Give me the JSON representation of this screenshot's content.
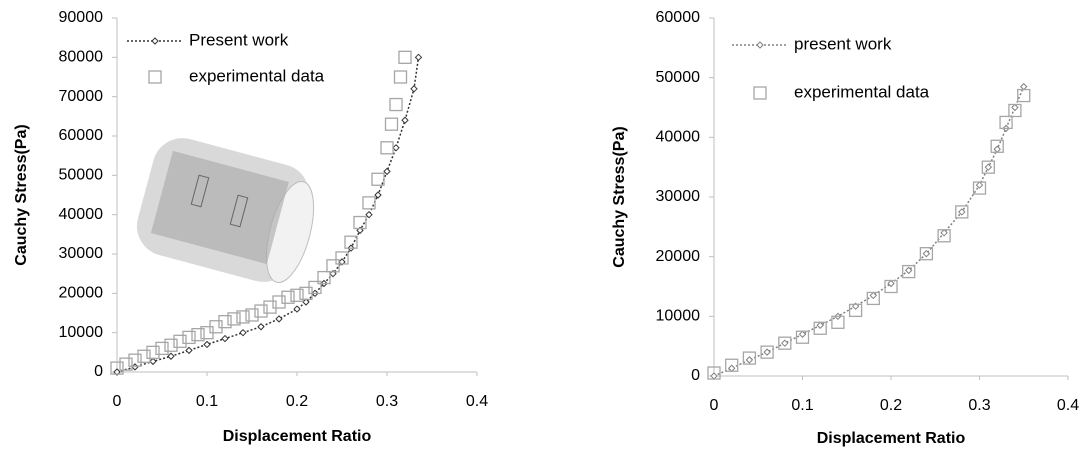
{
  "chart_data": [
    {
      "type": "scatter",
      "xlabel": "Displacement  Ratio",
      "ylabel": "Cauchy Stress(Pa)",
      "xlim": [
        0,
        0.4
      ],
      "ylim": [
        0,
        90000
      ],
      "xticks": [
        0,
        0.1,
        0.2,
        0.3,
        0.4
      ],
      "yticks": [
        0,
        10000,
        20000,
        30000,
        40000,
        50000,
        60000,
        70000,
        80000,
        90000
      ],
      "legend": "upper left",
      "series": [
        {
          "name": "Present work",
          "color": "#333333",
          "style": "line",
          "x": [
            0,
            0.02,
            0.04,
            0.06,
            0.08,
            0.1,
            0.12,
            0.14,
            0.16,
            0.18,
            0.2,
            0.21,
            0.22,
            0.23,
            0.24,
            0.25,
            0.26,
            0.27,
            0.28,
            0.29,
            0.3,
            0.31,
            0.32,
            0.33,
            0.335
          ],
          "values": [
            0,
            1300,
            2700,
            4000,
            5500,
            7000,
            8500,
            10000,
            11500,
            13500,
            16000,
            17800,
            20000,
            22500,
            25000,
            28000,
            31500,
            36000,
            40000,
            45000,
            51000,
            57000,
            64000,
            72000,
            80000
          ]
        },
        {
          "name": "experimental data",
          "color": "#a6a6a6",
          "style": "markers",
          "x": [
            0,
            0.01,
            0.02,
            0.03,
            0.04,
            0.05,
            0.06,
            0.07,
            0.08,
            0.09,
            0.1,
            0.11,
            0.12,
            0.13,
            0.14,
            0.15,
            0.16,
            0.17,
            0.18,
            0.19,
            0.2,
            0.21,
            0.22,
            0.23,
            0.24,
            0.25,
            0.26,
            0.27,
            0.28,
            0.29,
            0.3,
            0.305,
            0.31,
            0.315,
            0.32
          ],
          "values": [
            1000,
            2000,
            3000,
            4000,
            5000,
            6000,
            6800,
            7800,
            8800,
            9500,
            10000,
            11500,
            12800,
            13500,
            14000,
            14500,
            15500,
            16500,
            17800,
            19000,
            19500,
            20000,
            21500,
            24000,
            27000,
            29000,
            33000,
            38000,
            43000,
            49000,
            57000,
            63000,
            68000,
            75000,
            80000
          ]
        }
      ]
    },
    {
      "type": "scatter",
      "xlabel": "Displacement Ratio",
      "ylabel": "Cauchy Stress(Pa)",
      "xlim": [
        0,
        0.4
      ],
      "ylim": [
        0,
        60000
      ],
      "xticks": [
        0,
        0.1,
        0.2,
        0.3,
        0.4
      ],
      "yticks": [
        0,
        10000,
        20000,
        30000,
        40000,
        50000,
        60000
      ],
      "legend": "upper left",
      "series": [
        {
          "name": "present work",
          "color": "#808080",
          "style": "line",
          "x": [
            0,
            0.02,
            0.04,
            0.06,
            0.08,
            0.1,
            0.12,
            0.14,
            0.16,
            0.18,
            0.2,
            0.22,
            0.24,
            0.26,
            0.28,
            0.3,
            0.31,
            0.32,
            0.33,
            0.34,
            0.35
          ],
          "values": [
            0,
            1300,
            2700,
            4000,
            5500,
            7000,
            8500,
            10000,
            11700,
            13500,
            15500,
            17700,
            20500,
            24000,
            27500,
            32000,
            35000,
            38000,
            41500,
            45000,
            48500
          ]
        },
        {
          "name": "experimental data",
          "color": "#a6a6a6",
          "style": "markers",
          "x": [
            0,
            0.02,
            0.04,
            0.06,
            0.08,
            0.1,
            0.12,
            0.14,
            0.16,
            0.18,
            0.2,
            0.22,
            0.24,
            0.26,
            0.28,
            0.3,
            0.31,
            0.32,
            0.33,
            0.34,
            0.35
          ],
          "values": [
            500,
            1800,
            3000,
            4000,
            5500,
            6500,
            8000,
            9000,
            11000,
            13000,
            15000,
            17500,
            20500,
            23500,
            27500,
            31500,
            35000,
            38500,
            42500,
            44500,
            47000
          ]
        }
      ]
    }
  ]
}
